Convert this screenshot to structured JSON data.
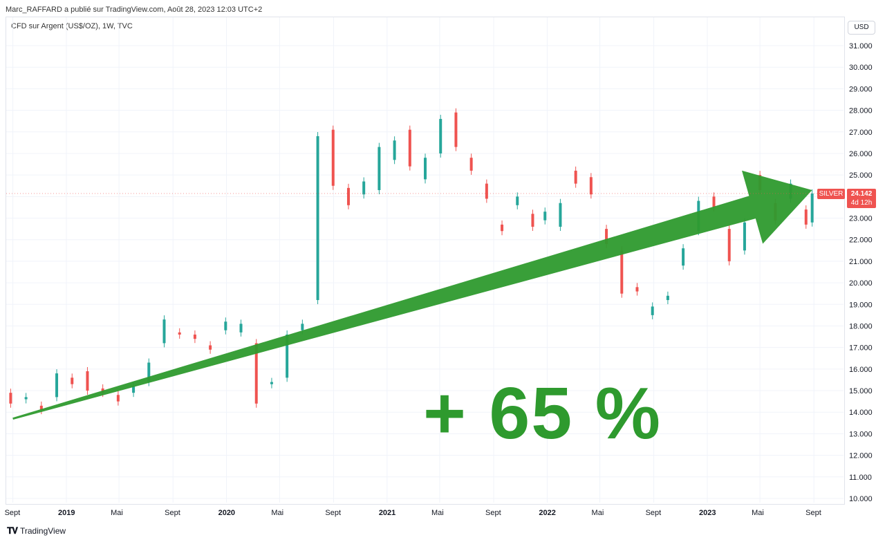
{
  "header": {
    "published": "Marc_RAFFARD a publié sur TradingView.com, Août 28, 2023 12:03 UTC+2"
  },
  "symbol": {
    "title": "CFD sur Argent (US$/OZ), 1W, TVC"
  },
  "currency": {
    "label": "USD"
  },
  "annotation": {
    "text": "+ 65 %"
  },
  "last_price": {
    "name": "SILVER",
    "price": "24.142",
    "countdown": "4d 12h"
  },
  "footer": {
    "brand": "TradingView"
  },
  "colors": {
    "up": "#26a69a",
    "down": "#ef5350",
    "arrow": "#2e9a2e",
    "grid": "#f0f3fa"
  },
  "chart_data": {
    "type": "candlestick",
    "title": "",
    "xlabel": "",
    "ylabel": "",
    "ylim": [
      10.0,
      31.0
    ],
    "y_ticks": [
      "10.000",
      "11.000",
      "12.000",
      "13.000",
      "14.000",
      "15.000",
      "16.000",
      "17.000",
      "18.000",
      "19.000",
      "20.000",
      "21.000",
      "22.000",
      "23.000",
      "24.000",
      "25.000",
      "26.000",
      "27.000",
      "28.000",
      "29.000",
      "30.000",
      "31.000"
    ],
    "x_ticks": [
      {
        "label": "Sept",
        "date": "2018-09-01",
        "bold": false
      },
      {
        "label": "2019",
        "date": "2019-01-01",
        "bold": true
      },
      {
        "label": "Mai",
        "date": "2019-05-01",
        "bold": false
      },
      {
        "label": "Sept",
        "date": "2019-09-01",
        "bold": false
      },
      {
        "label": "2020",
        "date": "2020-01-01",
        "bold": true
      },
      {
        "label": "Mai",
        "date": "2020-05-01",
        "bold": false
      },
      {
        "label": "Sept",
        "date": "2020-09-01",
        "bold": false
      },
      {
        "label": "2021",
        "date": "2021-01-01",
        "bold": true
      },
      {
        "label": "Mai",
        "date": "2021-05-01",
        "bold": false
      },
      {
        "label": "Sept",
        "date": "2021-09-01",
        "bold": false
      },
      {
        "label": "2022",
        "date": "2022-01-01",
        "bold": true
      },
      {
        "label": "Mai",
        "date": "2022-05-01",
        "bold": false
      },
      {
        "label": "Sept",
        "date": "2022-09-01",
        "bold": false
      },
      {
        "label": "2023",
        "date": "2023-01-01",
        "bold": true
      },
      {
        "label": "Mai",
        "date": "2023-05-01",
        "bold": false
      },
      {
        "label": "Sept",
        "date": "2023-09-01",
        "bold": false
      }
    ],
    "trend_arrow": {
      "from": {
        "date": "2018-09-01",
        "value": 13.7
      },
      "to": {
        "date": "2023-08-28",
        "value": 24.3
      }
    },
    "series": [
      {
        "values": [
          [
            "2018-08-27",
            14.9,
            14.4
          ],
          [
            "2018-10-01",
            14.6,
            14.7
          ],
          [
            "2018-11-05",
            14.3,
            14.1
          ],
          [
            "2018-12-10",
            14.7,
            15.8
          ],
          [
            "2019-01-14",
            15.6,
            15.3
          ],
          [
            "2019-02-18",
            15.9,
            15.0
          ],
          [
            "2019-03-25",
            15.1,
            14.9
          ],
          [
            "2019-04-29",
            14.8,
            14.5
          ],
          [
            "2019-06-03",
            14.9,
            15.2
          ],
          [
            "2019-07-08",
            15.4,
            16.3
          ],
          [
            "2019-08-12",
            17.2,
            18.3
          ],
          [
            "2019-09-16",
            17.7,
            17.6
          ],
          [
            "2019-10-21",
            17.6,
            17.4
          ],
          [
            "2019-11-25",
            17.1,
            16.9
          ],
          [
            "2019-12-30",
            17.8,
            18.2
          ],
          [
            "2020-02-03",
            17.7,
            18.1
          ],
          [
            "2020-03-09",
            17.2,
            14.4
          ],
          [
            "2020-04-13",
            15.3,
            15.4
          ],
          [
            "2020-05-18",
            15.6,
            17.6
          ],
          [
            "2020-06-22",
            17.8,
            18.1
          ],
          [
            "2020-07-27",
            19.2,
            26.8
          ],
          [
            "2020-08-31",
            27.1,
            24.5
          ],
          [
            "2020-10-05",
            24.4,
            23.6
          ],
          [
            "2020-11-09",
            24.1,
            24.7
          ],
          [
            "2020-12-14",
            24.3,
            26.3
          ],
          [
            "2021-01-18",
            25.7,
            26.6
          ],
          [
            "2021-02-22",
            27.1,
            25.4
          ],
          [
            "2021-03-29",
            24.8,
            25.8
          ],
          [
            "2021-05-03",
            26.0,
            27.6
          ],
          [
            "2021-06-07",
            27.9,
            26.3
          ],
          [
            "2021-07-12",
            25.8,
            25.2
          ],
          [
            "2021-08-16",
            24.6,
            23.9
          ],
          [
            "2021-09-20",
            22.7,
            22.4
          ],
          [
            "2021-10-25",
            23.6,
            24.0
          ],
          [
            "2021-11-29",
            23.2,
            22.6
          ],
          [
            "2021-12-27",
            22.9,
            23.3
          ],
          [
            "2022-01-31",
            22.6,
            23.7
          ],
          [
            "2022-03-07",
            25.2,
            24.6
          ],
          [
            "2022-04-11",
            24.9,
            24.1
          ],
          [
            "2022-05-16",
            22.5,
            21.8
          ],
          [
            "2022-06-20",
            21.5,
            19.5
          ],
          [
            "2022-07-25",
            19.8,
            19.6
          ],
          [
            "2022-08-29",
            18.5,
            18.9
          ],
          [
            "2022-10-03",
            19.2,
            19.4
          ],
          [
            "2022-11-07",
            20.8,
            21.6
          ],
          [
            "2022-12-12",
            22.4,
            23.8
          ],
          [
            "2023-01-16",
            24.0,
            23.5
          ],
          [
            "2023-02-20",
            22.5,
            21.0
          ],
          [
            "2023-03-27",
            21.5,
            22.8
          ],
          [
            "2023-05-01",
            25.0,
            24.3
          ],
          [
            "2023-06-05",
            23.7,
            22.9
          ],
          [
            "2023-07-10",
            23.9,
            24.6
          ],
          [
            "2023-08-14",
            23.4,
            22.7
          ],
          [
            "2023-08-28",
            22.8,
            24.142
          ]
        ]
      }
    ]
  }
}
